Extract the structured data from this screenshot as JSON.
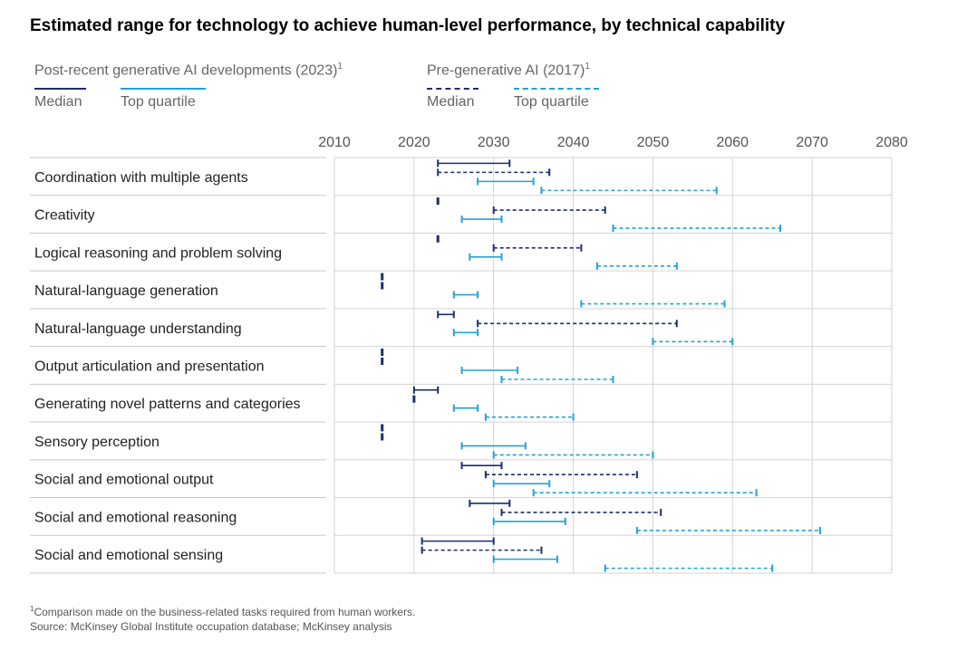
{
  "title": "Estimated range for technology to achieve human-level performance, by technical capability",
  "legend": {
    "group_2023": "Post-recent generative AI developments (2023)",
    "group_2017": "Pre-generative AI (2017)",
    "footnote_marker": "1",
    "median_label": "Median",
    "top_quartile_label": "Top quartile"
  },
  "colors": {
    "median_2023": "#1b2f6b",
    "top_quartile_2023": "#22a3d6",
    "median_2017": "#1b2f6b",
    "top_quartile_2017": "#22a3d6"
  },
  "footnote": {
    "marker": "1",
    "text": "Comparison made on the business-related tasks required from human workers.",
    "source": "Source: McKinsey Global Institute occupation database; McKinsey analysis"
  },
  "chart_data": {
    "type": "range",
    "title": "Estimated range for technology to achieve human-level performance, by technical capability",
    "x_ticks": [
      2010,
      2020,
      2030,
      2040,
      2050,
      2060,
      2070,
      2080
    ],
    "xlim": [
      2010,
      2080
    ],
    "grid": true,
    "series": [
      {
        "name": "Post-recent generative AI developments (2023) — Median",
        "style": "solid",
        "color": "#1b2f6b"
      },
      {
        "name": "Pre-generative AI (2017) — Median",
        "style": "dashed",
        "color": "#1b2f6b"
      },
      {
        "name": "Post-recent generative AI developments (2023) — Top quartile",
        "style": "solid",
        "color": "#22a3d6"
      },
      {
        "name": "Pre-generative AI (2017) — Top quartile",
        "style": "dashed",
        "color": "#22a3d6"
      }
    ],
    "categories": [
      {
        "label": "Coordination with multiple agents",
        "ranges": [
          [
            2023,
            2032
          ],
          [
            2023,
            2037
          ],
          [
            2028,
            2035
          ],
          [
            2036,
            2058
          ]
        ]
      },
      {
        "label": "Creativity",
        "ranges": [
          [
            2023,
            2023
          ],
          [
            2030,
            2044
          ],
          [
            2026,
            2031
          ],
          [
            2045,
            2066
          ]
        ]
      },
      {
        "label": "Logical reasoning and problem solving",
        "ranges": [
          [
            2023,
            2023
          ],
          [
            2030,
            2041
          ],
          [
            2027,
            2031
          ],
          [
            2043,
            2053
          ]
        ]
      },
      {
        "label": "Natural-language generation",
        "ranges": [
          [
            2016,
            2016
          ],
          [
            2016,
            2016
          ],
          [
            2025,
            2028
          ],
          [
            2041,
            2059
          ]
        ]
      },
      {
        "label": "Natural-language understanding",
        "ranges": [
          [
            2023,
            2025
          ],
          [
            2028,
            2053
          ],
          [
            2025,
            2028
          ],
          [
            2050,
            2060
          ]
        ]
      },
      {
        "label": "Output articulation and presentation",
        "ranges": [
          [
            2016,
            2016
          ],
          [
            2016,
            2016
          ],
          [
            2026,
            2033
          ],
          [
            2031,
            2045
          ]
        ]
      },
      {
        "label": "Generating novel patterns and categories",
        "ranges": [
          [
            2020,
            2023
          ],
          [
            2020,
            2020
          ],
          [
            2025,
            2028
          ],
          [
            2029,
            2040
          ]
        ]
      },
      {
        "label": "Sensory perception",
        "ranges": [
          [
            2016,
            2016
          ],
          [
            2016,
            2016
          ],
          [
            2026,
            2034
          ],
          [
            2030,
            2050
          ]
        ]
      },
      {
        "label": "Social and emotional output",
        "ranges": [
          [
            2026,
            2031
          ],
          [
            2029,
            2048
          ],
          [
            2030,
            2037
          ],
          [
            2035,
            2063
          ]
        ]
      },
      {
        "label": "Social and emotional reasoning",
        "ranges": [
          [
            2027,
            2032
          ],
          [
            2031,
            2051
          ],
          [
            2030,
            2039
          ],
          [
            2048,
            2071
          ]
        ]
      },
      {
        "label": "Social and emotional sensing",
        "ranges": [
          [
            2021,
            2030
          ],
          [
            2021,
            2036
          ],
          [
            2030,
            2038
          ],
          [
            2044,
            2065
          ]
        ]
      }
    ]
  }
}
